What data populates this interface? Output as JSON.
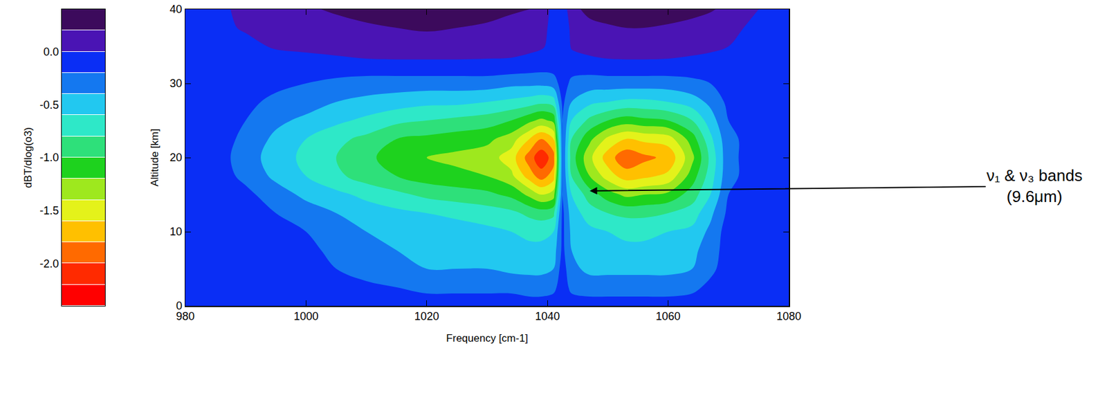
{
  "chart_data": {
    "type": "contour",
    "x_label": "Frequency [cm-1]",
    "y_label": "Altitude [km]",
    "xlim": [
      980,
      1080
    ],
    "xticks": [
      980,
      1000,
      1020,
      1040,
      1060,
      1080
    ],
    "ylim": [
      0,
      40
    ],
    "yticks": [
      0,
      10,
      20,
      30,
      40
    ],
    "x": [
      980,
      985,
      990,
      995,
      1000,
      1005,
      1010,
      1015,
      1020,
      1025,
      1030,
      1034,
      1037,
      1039,
      1041,
      1042.5,
      1044,
      1047,
      1050,
      1053,
      1056,
      1060,
      1064,
      1067,
      1070,
      1075,
      1080
    ],
    "y": [
      0,
      2.5,
      5,
      7.5,
      10,
      12.5,
      15,
      17.5,
      20,
      22.5,
      25,
      27.5,
      30,
      32.5,
      35,
      37.5,
      40
    ],
    "z": [
      [
        -0.1,
        -0.1,
        -0.1,
        -0.1,
        -0.1,
        -0.1,
        -0.1,
        -0.1,
        -0.1,
        -0.1,
        -0.1,
        -0.1,
        -0.1,
        -0.1,
        -0.1,
        -0.1,
        -0.1,
        -0.1,
        -0.1,
        -0.1,
        -0.1,
        -0.1,
        -0.1,
        -0.1,
        -0.1,
        -0.1,
        -0.1
      ],
      [
        -0.1,
        -0.1,
        -0.1,
        -0.1,
        -0.1,
        -0.1,
        -0.15,
        -0.2,
        -0.25,
        -0.25,
        -0.25,
        -0.25,
        -0.3,
        -0.3,
        -0.25,
        -0.1,
        -0.25,
        -0.3,
        -0.3,
        -0.3,
        -0.3,
        -0.3,
        -0.25,
        -0.15,
        -0.1,
        -0.1,
        -0.1
      ],
      [
        -0.1,
        -0.1,
        -0.1,
        -0.1,
        -0.1,
        -0.2,
        -0.3,
        -0.35,
        -0.4,
        -0.4,
        -0.4,
        -0.45,
        -0.45,
        -0.45,
        -0.4,
        -0.1,
        -0.35,
        -0.45,
        -0.45,
        -0.45,
        -0.45,
        -0.45,
        -0.4,
        -0.25,
        -0.1,
        -0.1,
        -0.1
      ],
      [
        -0.1,
        -0.1,
        -0.1,
        -0.1,
        -0.15,
        -0.25,
        -0.35,
        -0.4,
        -0.45,
        -0.45,
        -0.5,
        -0.5,
        -0.55,
        -0.55,
        -0.5,
        -0.15,
        -0.4,
        -0.5,
        -0.5,
        -0.55,
        -0.55,
        -0.5,
        -0.45,
        -0.3,
        -0.1,
        -0.1,
        -0.1
      ],
      [
        -0.1,
        -0.1,
        -0.1,
        -0.15,
        -0.2,
        -0.3,
        -0.4,
        -0.45,
        -0.5,
        -0.5,
        -0.55,
        -0.6,
        -0.65,
        -0.65,
        -0.6,
        -0.15,
        -0.45,
        -0.55,
        -0.6,
        -0.65,
        -0.65,
        -0.6,
        -0.55,
        -0.35,
        -0.1,
        -0.1,
        -0.1
      ],
      [
        -0.1,
        -0.1,
        -0.1,
        -0.2,
        -0.3,
        -0.4,
        -0.5,
        -0.55,
        -0.6,
        -0.65,
        -0.7,
        -0.75,
        -0.85,
        -0.9,
        -0.85,
        -0.15,
        -0.5,
        -0.7,
        -0.8,
        -0.85,
        -0.85,
        -0.8,
        -0.7,
        -0.45,
        -0.15,
        -0.1,
        -0.1
      ],
      [
        -0.1,
        -0.1,
        -0.15,
        -0.3,
        -0.45,
        -0.55,
        -0.65,
        -0.75,
        -0.85,
        -0.9,
        -0.95,
        -1.05,
        -1.25,
        -1.4,
        -1.3,
        -0.2,
        -0.6,
        -0.9,
        -1.1,
        -1.25,
        -1.2,
        -1.15,
        -0.9,
        -0.6,
        -0.2,
        -0.1,
        -0.1
      ],
      [
        -0.1,
        -0.1,
        -0.25,
        -0.45,
        -0.6,
        -0.75,
        -0.9,
        -1.0,
        -1.1,
        -1.15,
        -1.2,
        -1.35,
        -1.7,
        -1.9,
        -1.7,
        -0.2,
        -0.8,
        -1.2,
        -1.5,
        -1.7,
        -1.65,
        -1.55,
        -1.1,
        -0.7,
        -0.25,
        -0.1,
        -0.1
      ],
      [
        -0.1,
        -0.1,
        -0.3,
        -0.5,
        -0.65,
        -0.8,
        -0.95,
        -1.1,
        -1.2,
        -1.25,
        -1.3,
        -1.5,
        -1.9,
        -2.15,
        -1.9,
        -0.2,
        -0.9,
        -1.35,
        -1.7,
        -1.95,
        -1.85,
        -1.75,
        -1.25,
        -0.75,
        -0.25,
        -0.1,
        -0.1
      ],
      [
        -0.1,
        -0.1,
        -0.25,
        -0.45,
        -0.6,
        -0.75,
        -0.85,
        -1.0,
        -1.05,
        -1.1,
        -1.15,
        -1.3,
        -1.6,
        -1.8,
        -1.6,
        -0.2,
        -0.8,
        -1.15,
        -1.45,
        -1.6,
        -1.55,
        -1.5,
        -1.1,
        -0.65,
        -0.25,
        -0.1,
        -0.1
      ],
      [
        -0.1,
        -0.1,
        -0.2,
        -0.35,
        -0.45,
        -0.55,
        -0.65,
        -0.75,
        -0.8,
        -0.85,
        -0.9,
        -1.0,
        -1.15,
        -1.25,
        -1.15,
        -0.2,
        -0.6,
        -0.85,
        -1.0,
        -1.1,
        -1.05,
        -1.0,
        -0.8,
        -0.5,
        -0.2,
        -0.1,
        -0.1
      ],
      [
        -0.1,
        -0.1,
        -0.15,
        -0.25,
        -0.3,
        -0.4,
        -0.45,
        -0.5,
        -0.55,
        -0.55,
        -0.6,
        -0.65,
        -0.7,
        -0.75,
        -0.7,
        -0.15,
        -0.4,
        -0.55,
        -0.6,
        -0.65,
        -0.65,
        -0.6,
        -0.5,
        -0.35,
        -0.15,
        -0.1,
        -0.1
      ],
      [
        -0.1,
        -0.1,
        -0.1,
        -0.15,
        -0.2,
        -0.25,
        -0.3,
        -0.3,
        -0.3,
        -0.3,
        -0.3,
        -0.35,
        -0.35,
        -0.35,
        -0.3,
        -0.1,
        -0.25,
        -0.3,
        -0.3,
        -0.3,
        -0.3,
        -0.3,
        -0.25,
        -0.2,
        -0.1,
        -0.1,
        -0.1
      ],
      [
        -0.1,
        -0.1,
        -0.1,
        -0.1,
        -0.1,
        -0.08,
        -0.05,
        -0.05,
        -0.05,
        -0.05,
        -0.05,
        -0.05,
        -0.08,
        -0.1,
        -0.1,
        -0.1,
        -0.1,
        -0.08,
        -0.05,
        -0.05,
        -0.05,
        -0.05,
        -0.08,
        -0.1,
        -0.1,
        -0.1,
        -0.1
      ],
      [
        -0.1,
        -0.1,
        -0.05,
        0.02,
        0.05,
        0.08,
        0.1,
        0.12,
        0.12,
        0.12,
        0.1,
        0.08,
        0.05,
        0.02,
        -0.05,
        -0.15,
        0.02,
        0.08,
        0.1,
        0.12,
        0.12,
        0.1,
        0.08,
        0.05,
        0.0,
        -0.1,
        -0.1
      ],
      [
        -0.1,
        -0.05,
        0.02,
        0.08,
        0.12,
        0.15,
        0.18,
        0.2,
        0.22,
        0.2,
        0.18,
        0.15,
        0.1,
        0.05,
        -0.05,
        -0.15,
        0.05,
        0.15,
        0.18,
        0.2,
        0.2,
        0.18,
        0.15,
        0.1,
        0.05,
        -0.05,
        -0.1
      ],
      [
        -0.1,
        -0.05,
        0.05,
        0.12,
        0.18,
        0.22,
        0.25,
        0.28,
        0.3,
        0.28,
        0.25,
        0.22,
        0.2,
        0.1,
        -0.05,
        -0.15,
        0.15,
        0.25,
        0.28,
        0.3,
        0.3,
        0.28,
        0.25,
        0.22,
        0.15,
        0.0,
        -0.1
      ]
    ],
    "colorbar": {
      "label": "dBT/dlog(o3)",
      "range": [
        -2.4,
        0.4
      ],
      "step": 0.2,
      "ticks": [
        {
          "value": 0,
          "label": "0.0"
        },
        -0.5,
        {
          "value": -1,
          "label": "-1.0"
        },
        -1.5,
        {
          "value": -2,
          "label": "-2.0"
        }
      ],
      "colors": [
        "#ff0000",
        "#ff2a00",
        "#ff6a00",
        "#ffc000",
        "#e4f21a",
        "#9ee81e",
        "#1ed21e",
        "#2ee07a",
        "#2ee8c8",
        "#22c8f0",
        "#1478f0",
        "#0a2ef5",
        "#4a14b4",
        "#3c0a5c"
      ]
    },
    "annotations": [
      {
        "text": [
          "ν₁ & ν₃ bands",
          "(9.6μm)"
        ],
        "x": 1047,
        "y": 15.5
      }
    ]
  }
}
